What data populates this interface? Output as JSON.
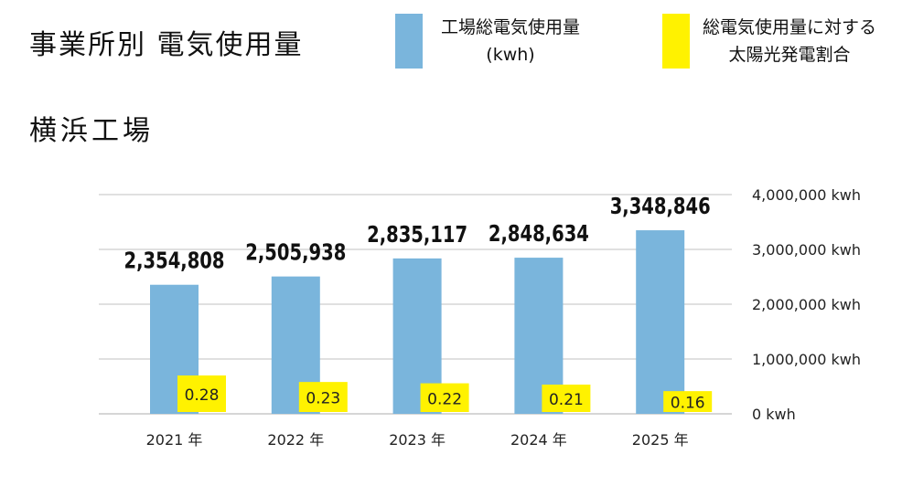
{
  "title": "事業所別 電気使用量",
  "subtitle": "横浜工場",
  "legend": [
    {
      "lines": [
        "工場総電気使用量",
        "(kwh)"
      ],
      "color": "#7ab5dc"
    },
    {
      "lines": [
        "総電気使用量に対する",
        "太陽光発電割合"
      ],
      "color": "#fff200"
    }
  ],
  "chart_data": {
    "type": "bar",
    "categories": [
      "2021 年",
      "2022 年",
      "2023 年",
      "2024 年",
      "2025 年"
    ],
    "series": [
      {
        "name": "工場総電気使用量 (kwh)",
        "values": [
          2354808,
          2505938,
          2835117,
          2848634,
          3348846
        ],
        "color": "#7ab5dc",
        "labels": [
          "2,354,808",
          "2,505,938",
          "2,835,117",
          "2,848,634",
          "3,348,846"
        ]
      },
      {
        "name": "総電気使用量に対する太陽光発電割合",
        "values": [
          0.28,
          0.23,
          0.22,
          0.21,
          0.16
        ],
        "color": "#fff200",
        "labels": [
          "0.28",
          "0.23",
          "0.22",
          "0.21",
          "0.16"
        ]
      }
    ],
    "yaxis": {
      "min": 0,
      "max": 4000000,
      "ticks": [
        "0 kwh",
        "1,000,000 kwh",
        "2,000,000 kwh",
        "3,000,000 kwh",
        "4,000,000 kwh"
      ],
      "position": "right"
    },
    "grid": true,
    "legend_position": "top-right"
  }
}
